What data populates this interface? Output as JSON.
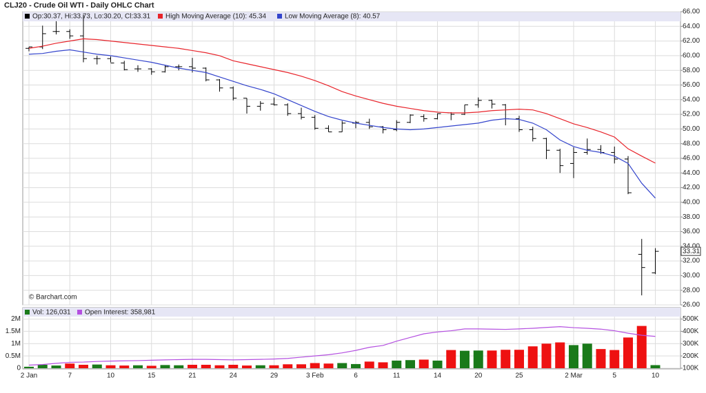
{
  "chart_data": [
    {
      "type": "ohlc",
      "title": "CLJ20 - Crude Oil WTI - Daily OHLC Chart",
      "legend_text": "Op:30.37, Hi:33.73, Lo:30.20, Cl:33.31",
      "watermark": "© Barchart.com",
      "bar_color": "#000000",
      "open": [
        61.0,
        61.2,
        63.3,
        63.3,
        62.7,
        59.6,
        59.6,
        59.0,
        58.2,
        58.2,
        57.8,
        58.5,
        58.5,
        58.3,
        56.7,
        55.6,
        54.2,
        53.1,
        53.4,
        53.3,
        52.1,
        51.6,
        50.1,
        49.6,
        50.8,
        50.9,
        50.3,
        49.9,
        50.9,
        51.7,
        51.4,
        52.2,
        52.0,
        53.3,
        53.9,
        53.3,
        51.4,
        49.9,
        48.7,
        47.1,
        45.3,
        46.8,
        47.2,
        46.8,
        45.9,
        32.9,
        30.37
      ],
      "high": [
        61.2,
        64.1,
        64.7,
        63.6,
        65.6,
        60.0,
        59.9,
        59.3,
        58.7,
        58.3,
        58.7,
        58.8,
        59.7,
        58.4,
        56.8,
        55.8,
        54.2,
        53.8,
        54.3,
        53.5,
        52.9,
        51.9,
        50.5,
        51.1,
        51.1,
        51.4,
        50.4,
        51.2,
        52.0,
        52.0,
        52.1,
        52.3,
        53.3,
        54.3,
        54.0,
        53.4,
        51.8,
        50.3,
        48.8,
        47.3,
        47.5,
        48.7,
        47.8,
        47.6,
        46.3,
        35.0,
        33.73
      ],
      "low": [
        60.6,
        60.9,
        62.9,
        62.3,
        59.1,
        58.8,
        59.1,
        58.0,
        57.8,
        57.4,
        57.7,
        58.0,
        57.7,
        56.5,
        55.1,
        53.9,
        52.1,
        52.5,
        53.2,
        51.8,
        51.3,
        49.9,
        49.6,
        49.6,
        50.1,
        50.0,
        49.4,
        49.7,
        50.8,
        51.0,
        51.3,
        51.2,
        51.9,
        52.9,
        52.8,
        50.5,
        49.6,
        48.3,
        45.9,
        44.0,
        43.3,
        46.5,
        46.6,
        45.3,
        41.1,
        27.3,
        30.2
      ],
      "close": [
        61.2,
        63.0,
        63.3,
        62.7,
        59.6,
        59.6,
        59.0,
        58.1,
        58.2,
        57.8,
        58.5,
        58.5,
        58.3,
        56.7,
        55.6,
        54.2,
        53.1,
        53.5,
        53.3,
        52.1,
        51.6,
        50.1,
        49.6,
        50.8,
        50.9,
        50.3,
        49.9,
        50.9,
        51.9,
        51.4,
        52.1,
        52.0,
        53.3,
        53.9,
        53.4,
        51.4,
        49.9,
        48.7,
        47.1,
        45.0,
        46.8,
        47.2,
        46.8,
        45.9,
        41.3,
        31.1,
        33.31
      ],
      "series": [
        {
          "name": "High Moving Average (10): 45.34",
          "color": "#e8232a",
          "values": [
            61.0,
            61.3,
            61.7,
            62.0,
            62.3,
            62.2,
            62.0,
            61.8,
            61.6,
            61.4,
            61.2,
            61.0,
            60.7,
            60.4,
            60.0,
            59.3,
            58.9,
            58.5,
            58.1,
            57.7,
            57.2,
            56.6,
            55.9,
            55.1,
            54.5,
            54.0,
            53.5,
            53.1,
            52.8,
            52.5,
            52.3,
            52.2,
            52.2,
            52.3,
            52.5,
            52.6,
            52.7,
            52.6,
            52.1,
            51.4,
            50.7,
            50.2,
            49.6,
            48.9,
            47.3,
            46.3,
            45.34
          ]
        },
        {
          "name": "Low Moving Average (8): 40.57",
          "color": "#3344cc",
          "values": [
            60.2,
            60.3,
            60.6,
            60.8,
            60.5,
            60.2,
            60.0,
            59.7,
            59.4,
            59.1,
            58.7,
            58.3,
            58.0,
            57.7,
            57.1,
            56.5,
            55.9,
            55.4,
            54.8,
            54.0,
            53.2,
            52.4,
            51.7,
            51.2,
            50.8,
            50.5,
            50.2,
            50.0,
            49.9,
            50.0,
            50.2,
            50.4,
            50.6,
            50.8,
            51.2,
            51.4,
            51.3,
            50.8,
            49.9,
            48.5,
            47.6,
            47.1,
            46.8,
            46.3,
            45.3,
            42.6,
            40.57
          ]
        }
      ],
      "ylim": [
        26,
        66
      ],
      "yticks": [
        {
          "value": 26,
          "label": "26.00"
        },
        {
          "value": 28,
          "label": "28.00"
        },
        {
          "value": 30,
          "label": "30.00"
        },
        {
          "value": 32,
          "label": "32.00"
        },
        {
          "value": 34,
          "label": "34.00"
        },
        {
          "value": 36,
          "label": "36.00"
        },
        {
          "value": 38,
          "label": "38.00"
        },
        {
          "value": 40,
          "label": "40.00"
        },
        {
          "value": 42,
          "label": "42.00"
        },
        {
          "value": 44,
          "label": "44.00"
        },
        {
          "value": 46,
          "label": "46.00"
        },
        {
          "value": 48,
          "label": "48.00"
        },
        {
          "value": 50,
          "label": "50.00"
        },
        {
          "value": 52,
          "label": "52.00"
        },
        {
          "value": 54,
          "label": "54.00"
        },
        {
          "value": 56,
          "label": "56.00"
        },
        {
          "value": 58,
          "label": "58.00"
        },
        {
          "value": 60,
          "label": "60.00"
        },
        {
          "value": 62,
          "label": "62.00"
        },
        {
          "value": 64,
          "label": "64.00"
        },
        {
          "value": 66,
          "label": "66.00"
        }
      ],
      "grid": true
    },
    {
      "type": "bar",
      "categories": [
        "2 Jan",
        null,
        null,
        "7",
        null,
        null,
        "10",
        null,
        null,
        "15",
        null,
        null,
        "21",
        null,
        null,
        "24",
        null,
        null,
        "29",
        null,
        null,
        "3 Feb",
        null,
        null,
        "6",
        null,
        null,
        "11",
        null,
        null,
        "14",
        null,
        null,
        "20",
        null,
        null,
        "25",
        null,
        null,
        null,
        "2 Mar",
        null,
        null,
        "5",
        null,
        null,
        "10"
      ],
      "series": [
        {
          "name": "Vol: 126,031",
          "up_color": "#1a7a1a",
          "down_color": "#ee1111",
          "values": [
            60000,
            140000,
            110000,
            190000,
            140000,
            150000,
            120000,
            110000,
            120000,
            100000,
            130000,
            120000,
            140000,
            140000,
            120000,
            140000,
            110000,
            120000,
            120000,
            160000,
            160000,
            210000,
            190000,
            210000,
            170000,
            270000,
            240000,
            310000,
            330000,
            350000,
            310000,
            740000,
            710000,
            720000,
            720000,
            750000,
            750000,
            890000,
            1000000,
            1050000,
            940000,
            1000000,
            780000,
            740000,
            1250000,
            1720000,
            126031
          ]
        },
        {
          "name": "Open Interest: 358,981",
          "color": "#b44fe0",
          "axis": "y2",
          "values": [
            125000,
            130000,
            140000,
            148000,
            150000,
            155000,
            158000,
            160000,
            162000,
            165000,
            168000,
            170000,
            172000,
            172000,
            170000,
            168000,
            170000,
            172000,
            175000,
            180000,
            190000,
            200000,
            210000,
            225000,
            245000,
            270000,
            285000,
            320000,
            350000,
            380000,
            395000,
            405000,
            420000,
            420000,
            418000,
            416000,
            420000,
            425000,
            432000,
            438000,
            430000,
            425000,
            418000,
            405000,
            385000,
            368000,
            358981
          ]
        }
      ],
      "ylim": [
        0,
        2100000
      ],
      "yticks": [
        0,
        {
          "value": 500000,
          "label": "0.5M"
        },
        {
          "value": 1000000,
          "label": "1M"
        },
        {
          "value": 1500000,
          "label": "1.5M"
        },
        {
          "value": 2000000,
          "label": "2M"
        }
      ],
      "y2lim": [
        100000,
        520000
      ],
      "y2ticks": [
        {
          "value": 100000,
          "label": "100K"
        },
        {
          "value": 200000,
          "label": "200K"
        },
        {
          "value": 300000,
          "label": "300K"
        },
        {
          "value": 400000,
          "label": "400K"
        },
        {
          "value": 500000,
          "label": "500K"
        }
      ],
      "grid": true
    }
  ]
}
